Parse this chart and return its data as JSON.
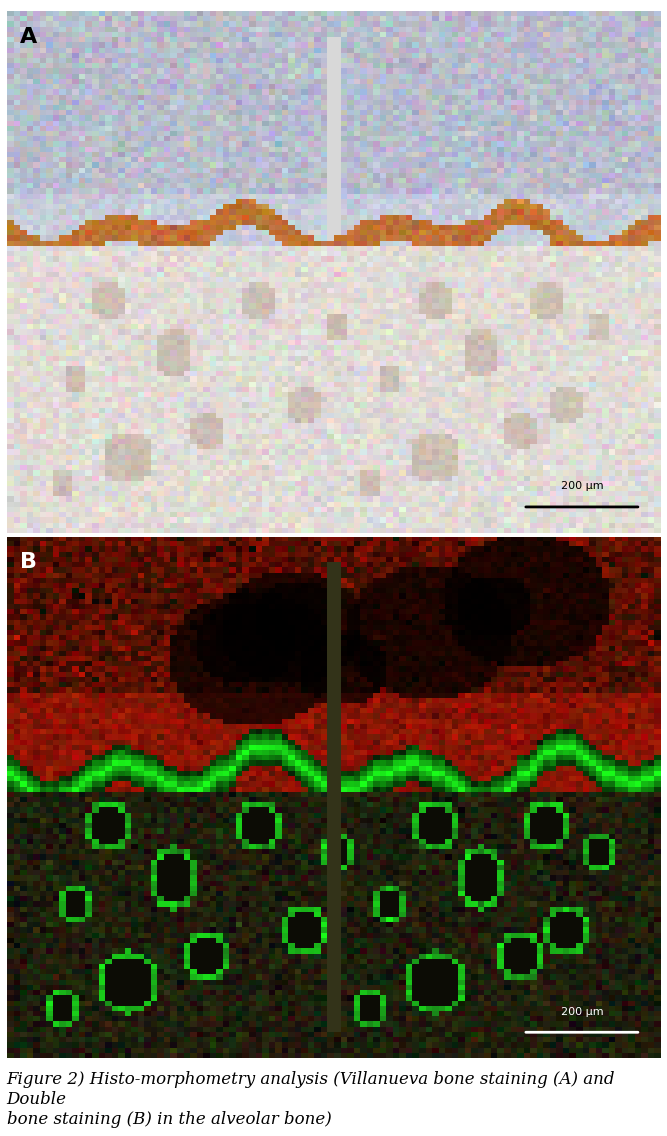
{
  "fig_width": 6.67,
  "fig_height": 11.36,
  "dpi": 100,
  "panel_A_label": "A",
  "panel_B_label": "B",
  "scale_bar_text_A": "200 μm",
  "scale_bar_text_B": "200 μm",
  "caption": "Figure 2) Histo-morphometry analysis (Villanueva bone staining (A) and Double\nbone staining (B) in the alveolar bone)",
  "caption_fontsize": 12,
  "label_fontsize": 16,
  "label_color": "#000000",
  "background_color": "#ffffff",
  "panel_A_bg": "#c8c8d8",
  "panel_B_bg": "#8B1500",
  "divider_color": "#888888",
  "scale_bar_color_A": "#000000",
  "scale_bar_color_B": "#cccccc"
}
